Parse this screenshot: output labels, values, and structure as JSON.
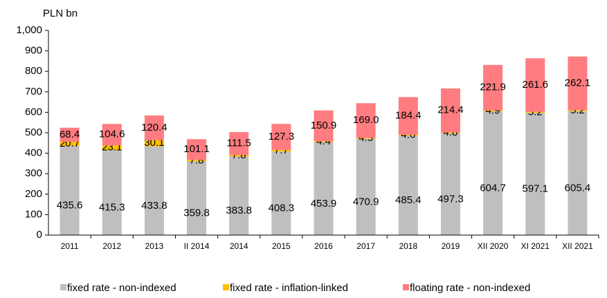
{
  "chart_data": {
    "type": "stacked_bar",
    "y_label": "PLN bn",
    "categories": [
      "2011",
      "2012",
      "2013",
      "II 2014",
      "2014",
      "2015",
      "2016",
      "2017",
      "2018",
      "2019",
      "XII 2020",
      "XI 2021",
      "XII 2021"
    ],
    "series": [
      {
        "name": "fixed rate - non-indexed",
        "color": "#bfbfbf",
        "values": [
          435.6,
          415.3,
          433.8,
          359.8,
          383.8,
          408.3,
          453.9,
          470.9,
          485.4,
          497.3,
          604.7,
          597.1,
          605.4
        ]
      },
      {
        "name": "fixed rate - inflation-linked",
        "color": "#ffc000",
        "values": [
          20.7,
          23.1,
          30.1,
          7.8,
          7.8,
          7.7,
          4.4,
          4.5,
          4.6,
          4.8,
          4.9,
          5.2,
          5.2
        ]
      },
      {
        "name": "floating rate - non-indexed",
        "color": "#ff7c80",
        "values": [
          68.4,
          104.6,
          120.4,
          101.1,
          111.5,
          127.3,
          150.9,
          169,
          184.4,
          214.4,
          221.9,
          261.6,
          262.1
        ],
        "value_labels": [
          "68.4",
          "104.6",
          "120.4",
          "101.1",
          "111.5",
          "127.3",
          "150.9",
          "169.0",
          "184.4",
          "214.4",
          "221.9",
          "261.6",
          "262.1"
        ]
      }
    ],
    "ylim": [
      0,
      1000
    ],
    "yticks": [
      0,
      100,
      200,
      300,
      400,
      500,
      600,
      700,
      800,
      900,
      {
        "value": 1000,
        "label": "1,000"
      }
    ],
    "legend": "bottom"
  }
}
